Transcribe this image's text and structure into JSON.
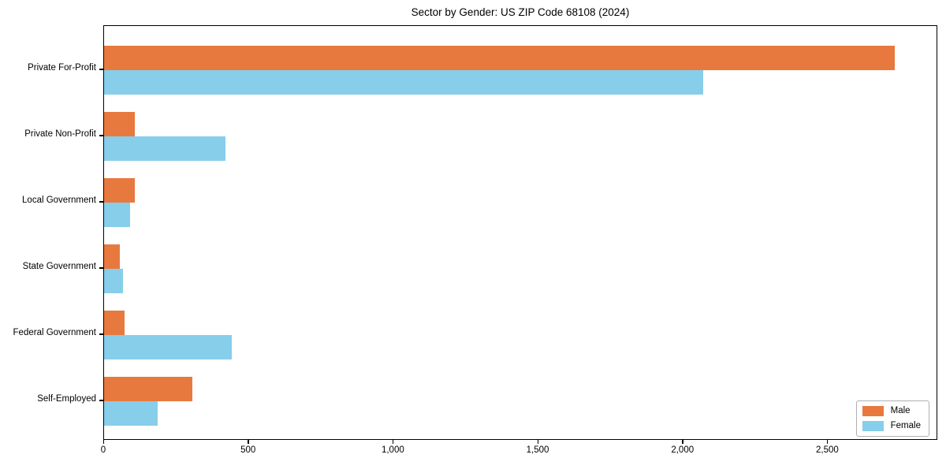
{
  "chart_data": {
    "type": "bar",
    "orientation": "horizontal",
    "title": "Sector by Gender: US ZIP Code 68108 (2024)",
    "categories": [
      "Private For-Profit",
      "Private Non-Profit",
      "Local Government",
      "State Government",
      "Federal Government",
      "Self-Employed"
    ],
    "series": [
      {
        "name": "Male",
        "color": "#e8793e",
        "values": [
          2730,
          105,
          105,
          55,
          70,
          305
        ]
      },
      {
        "name": "Female",
        "color": "#87ceeb",
        "values": [
          2070,
          420,
          90,
          65,
          440,
          185
        ]
      }
    ],
    "xlim": [
      0,
      2880
    ],
    "xticks": [
      0,
      500,
      1000,
      1500,
      2000,
      2500
    ],
    "xtick_labels": [
      "0",
      "500",
      "1,000",
      "1,500",
      "2,000",
      "2,500"
    ],
    "ylabel": "",
    "xlabel": "",
    "grid": false,
    "legend": {
      "position": "lower-right",
      "entries": [
        "Male",
        "Female"
      ]
    },
    "colors": {
      "axis": "#000000",
      "background": "#ffffff",
      "legend_border": "#b0b0b0"
    }
  }
}
